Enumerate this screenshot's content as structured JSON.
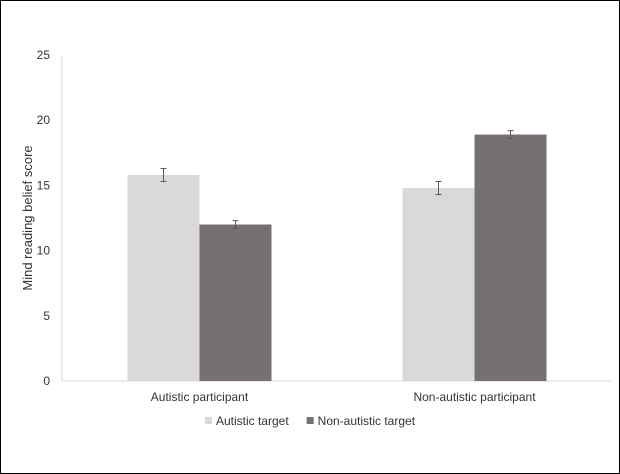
{
  "chart_data": {
    "type": "bar",
    "title": "",
    "xlabel": "",
    "ylabel": "Mind reading belief score",
    "ylim": [
      0,
      25
    ],
    "yticks": [
      0,
      5,
      10,
      15,
      20,
      25
    ],
    "categories": [
      "Autistic participant",
      "Non-autistic participant"
    ],
    "series": [
      {
        "name": "Autistic target",
        "color": "#d9d9db",
        "values": [
          15.8,
          14.8
        ],
        "error": [
          0.5,
          0.5
        ]
      },
      {
        "name": "Non-autistic target",
        "color": "#767170",
        "values": [
          12.0,
          18.9
        ],
        "error": [
          0.3,
          0.3
        ]
      }
    ],
    "grid": false,
    "legend_position": "bottom-center",
    "error_bars": true
  }
}
